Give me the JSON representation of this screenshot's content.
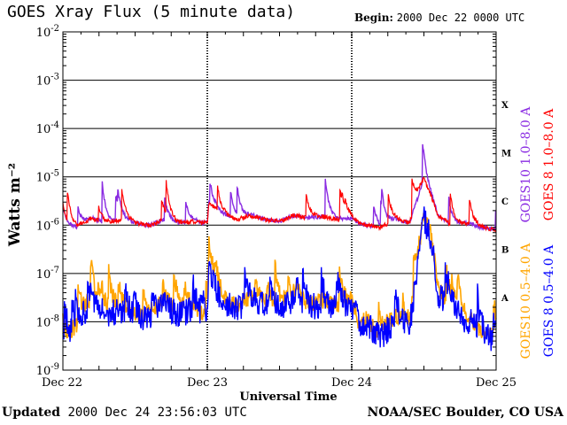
{
  "header": {
    "title": "GOES Xray Flux (5 minute data)",
    "begin_label": "Begin:",
    "begin_value": "2000 Dec 22 0000 UTC"
  },
  "footer": {
    "updated_label": "Updated",
    "updated_value": "2000 Dec 24 23:56:03 UTC",
    "source": "NOAA/SEC Boulder, CO USA"
  },
  "chart_data": {
    "type": "line",
    "title": "GOES Xray Flux (5 minute data)",
    "xlabel": "Universal Time",
    "ylabel": "Watts m⁻²",
    "yscale": "log",
    "ylim": [
      1e-09,
      0.01
    ],
    "x_ticks": [
      "Dec 22",
      "Dec 23",
      "Dec 24",
      "Dec 25"
    ],
    "xlim_days": [
      0,
      3
    ],
    "y_ticks": [
      {
        "base": "10",
        "exp": "-2",
        "value": 0.01
      },
      {
        "base": "10",
        "exp": "-3",
        "value": 0.001
      },
      {
        "base": "10",
        "exp": "-4",
        "value": 0.0001
      },
      {
        "base": "10",
        "exp": "-5",
        "value": 1e-05
      },
      {
        "base": "10",
        "exp": "-6",
        "value": 1e-06
      },
      {
        "base": "10",
        "exp": "-7",
        "value": 1e-07
      },
      {
        "base": "10",
        "exp": "-8",
        "value": 1e-08
      },
      {
        "base": "10",
        "exp": "-9",
        "value": 1e-09
      }
    ],
    "flare_classes": [
      {
        "label": "X",
        "min": 0.0001
      },
      {
        "label": "M",
        "min": 1e-05
      },
      {
        "label": "C",
        "min": 1e-06
      },
      {
        "label": "B",
        "min": 1e-07
      },
      {
        "label": "A",
        "min": 1e-08
      }
    ],
    "grid": true,
    "legend_position": "right, vertical",
    "series": [
      {
        "name": "GOES10 1.0–8.0 A",
        "color": "#8a2be2",
        "band": "long",
        "satellite": "GOES10"
      },
      {
        "name": "GOES 8 1.0–8.0 A",
        "color": "#ff0000",
        "band": "long",
        "satellite": "GOES8"
      },
      {
        "name": "GOES10 0.5–4.0 A",
        "color": "#ffa500",
        "band": "short",
        "satellite": "GOES10"
      },
      {
        "name": "GOES 8 0.5–4.0 A",
        "color": "#0000ff",
        "band": "short",
        "satellite": "GOES8"
      }
    ],
    "long_band_profile": {
      "day": [
        0,
        0.1,
        0.2,
        0.3,
        0.4,
        0.5,
        0.6,
        0.7,
        0.8,
        0.9,
        1.0,
        1.01,
        1.1,
        1.2,
        1.3,
        1.4,
        1.5,
        1.6,
        1.7,
        1.8,
        1.9,
        2.0,
        2.05,
        2.1,
        2.2,
        2.3,
        2.4,
        2.5,
        2.55,
        2.6,
        2.7,
        2.8,
        2.9,
        3.0
      ],
      "flux": [
        9e-07,
        9e-07,
        1.4e-06,
        1.1e-06,
        1.3e-06,
        1.1e-06,
        1e-06,
        1.3e-06,
        1.1e-06,
        1.2e-06,
        1.1e-06,
        3e-06,
        1.8e-06,
        1.3e-06,
        1.6e-06,
        1.3e-06,
        1.2e-06,
        1.6e-06,
        1.4e-06,
        1.5e-06,
        1.3e-06,
        1.4e-06,
        1.1e-06,
        1e-06,
        9e-07,
        1.3e-06,
        1.1e-06,
        9e-06,
        4e-06,
        1.5e-06,
        1e-06,
        1.1e-06,
        9e-07,
        8e-07
      ]
    },
    "short_band_profile": {
      "day": [
        0,
        0.1,
        0.2,
        0.3,
        0.4,
        0.5,
        0.6,
        0.7,
        0.8,
        0.9,
        1.0,
        1.01,
        1.1,
        1.2,
        1.3,
        1.4,
        1.5,
        1.6,
        1.7,
        1.8,
        1.9,
        2.0,
        2.05,
        2.1,
        2.2,
        2.3,
        2.4,
        2.5,
        2.55,
        2.6,
        2.7,
        2.8,
        2.9,
        3.0
      ],
      "flux": [
        3e-09,
        8e-09,
        3e-08,
        1.5e-08,
        2e-08,
        1.2e-08,
        1.2e-08,
        2.5e-08,
        1.5e-08,
        2e-08,
        1e-08,
        1.2e-07,
        3e-08,
        2e-08,
        3e-08,
        2.5e-08,
        2e-08,
        3e-08,
        2e-08,
        2.5e-08,
        2e-08,
        2.5e-08,
        8e-09,
        1e-08,
        5e-09,
        1.2e-08,
        8e-09,
        1.5e-06,
        6e-07,
        4e-08,
        2e-08,
        1e-08,
        6e-09,
        4e-09
      ]
    }
  }
}
